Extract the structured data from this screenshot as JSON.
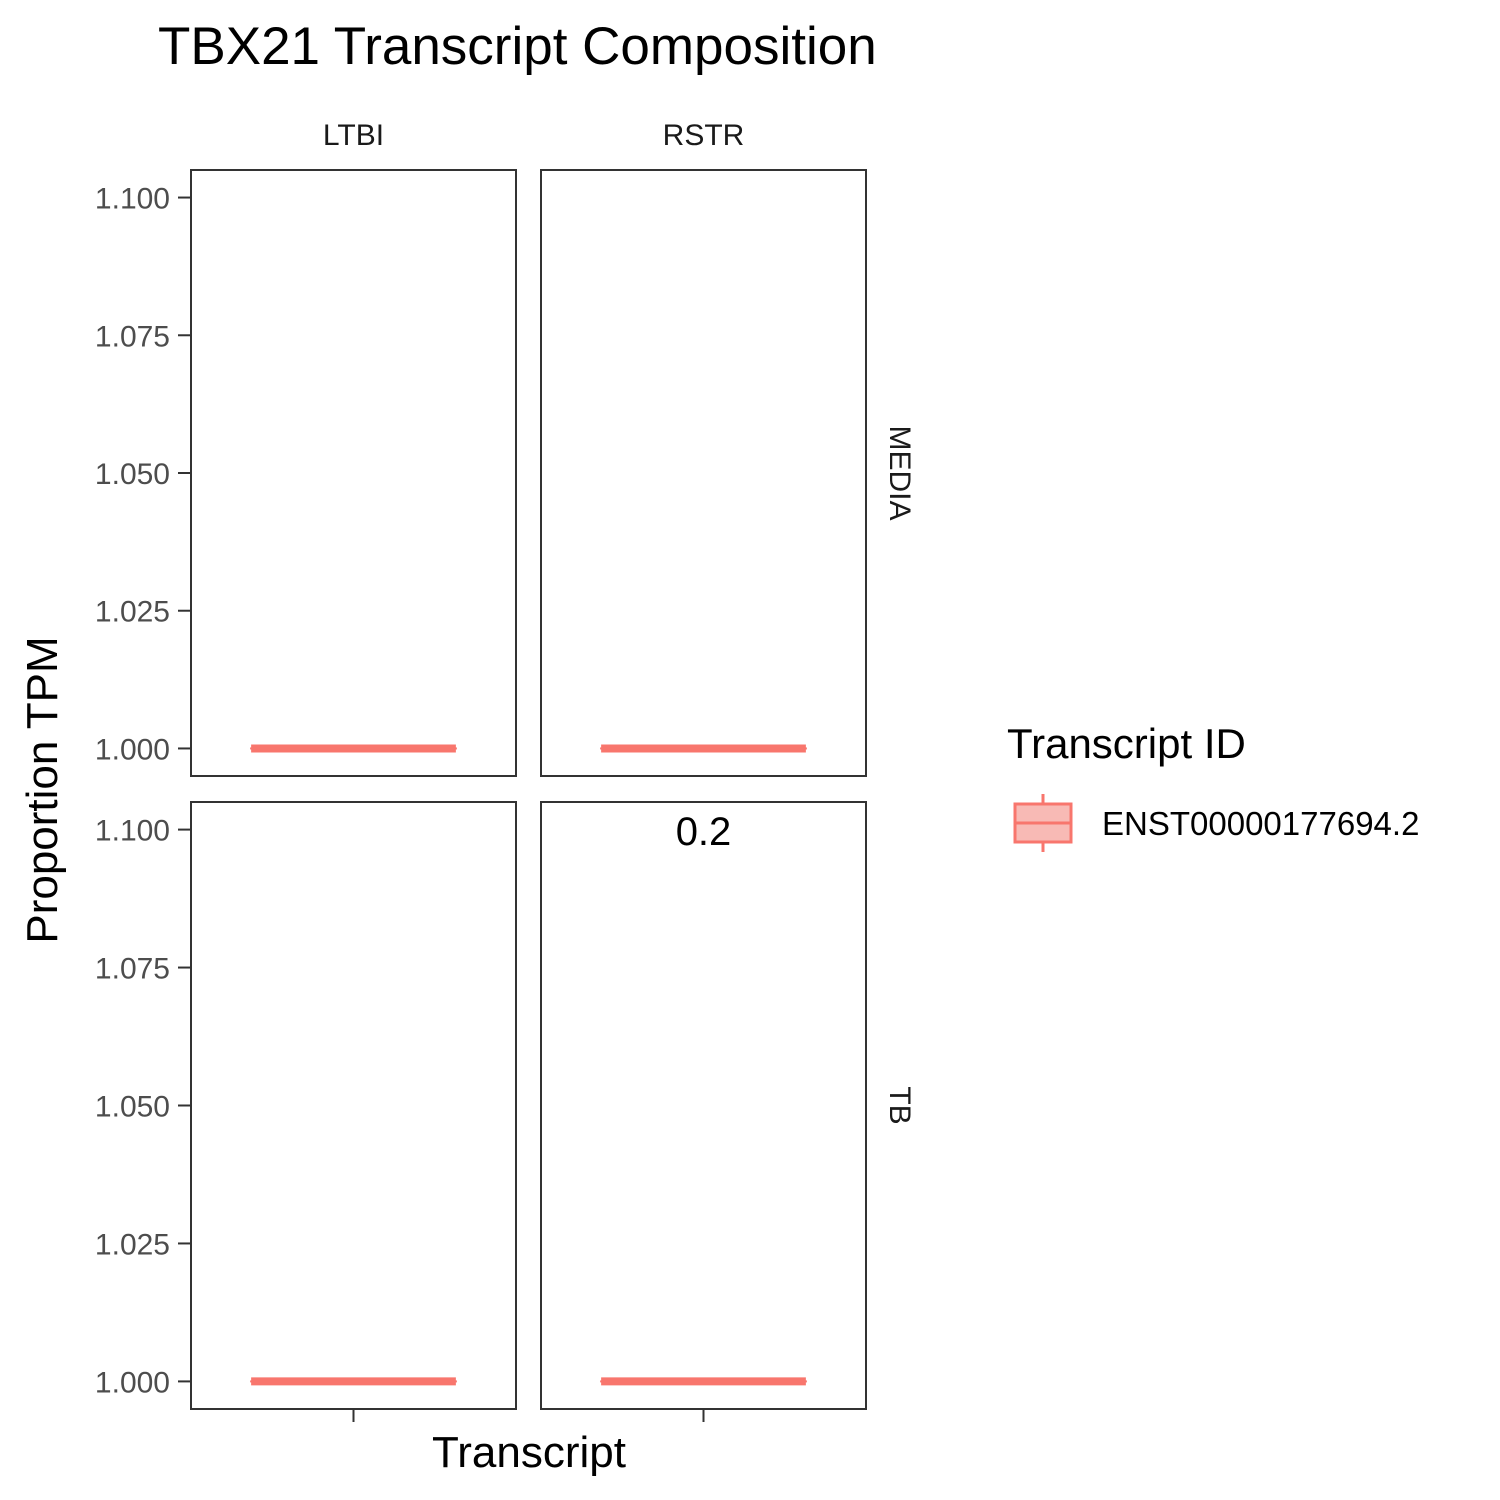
{
  "chart_data": {
    "type": "box",
    "title": "TBX21 Transcript Composition",
    "xlabel": "Transcript",
    "ylabel": "Proportion TPM",
    "ylim": [
      0.995,
      1.105
    ],
    "y_ticks": [
      "1.000",
      "1.025",
      "1.050",
      "1.075",
      "1.100"
    ],
    "y_tick_values": [
      1.0,
      1.025,
      1.05,
      1.075,
      1.1
    ],
    "facet_cols": [
      "LTBI",
      "RSTR"
    ],
    "facet_rows": [
      "MEDIA",
      "TB"
    ],
    "grid": false,
    "legend": {
      "title": "Transcript ID",
      "placement": "right",
      "entries": [
        {
          "label": "ENST00000177694.2",
          "color": "#F8766D",
          "fill": "#F8BAB5"
        }
      ]
    },
    "panels": [
      {
        "row": "MEDIA",
        "col": "LTBI",
        "series": [
          {
            "transcript": "ENST00000177694.2",
            "median": 1.0,
            "q1": 1.0,
            "q3": 1.0
          }
        ],
        "annotation": ""
      },
      {
        "row": "MEDIA",
        "col": "RSTR",
        "series": [
          {
            "transcript": "ENST00000177694.2",
            "median": 1.0,
            "q1": 1.0,
            "q3": 1.0
          }
        ],
        "annotation": ""
      },
      {
        "row": "TB",
        "col": "LTBI",
        "series": [
          {
            "transcript": "ENST00000177694.2",
            "median": 1.0,
            "q1": 1.0,
            "q3": 1.0
          }
        ],
        "annotation": ""
      },
      {
        "row": "TB",
        "col": "RSTR",
        "series": [
          {
            "transcript": "ENST00000177694.2",
            "median": 1.0,
            "q1": 1.0,
            "q3": 1.0
          }
        ],
        "annotation": "0.2"
      }
    ]
  }
}
